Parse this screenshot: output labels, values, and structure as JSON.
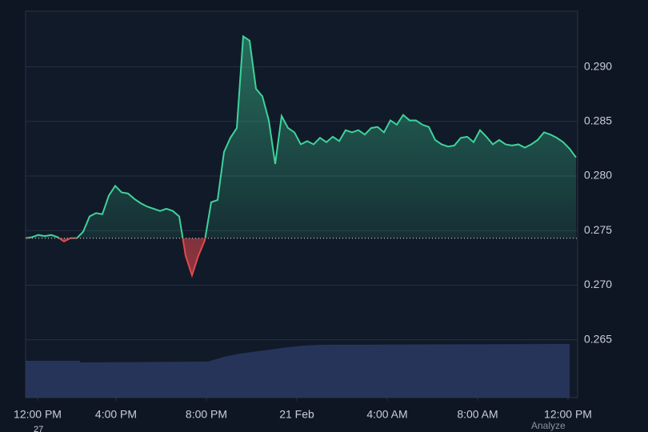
{
  "chart_data": {
    "type": "baseline-area",
    "series": [
      {
        "name": "price",
        "color": "#3ed39b",
        "negative_color": "#e5484d",
        "values": [
          0.2743,
          0.2744,
          0.2746,
          0.2745,
          0.2746,
          0.2744,
          0.274,
          0.2743,
          0.2743,
          0.2749,
          0.2763,
          0.2766,
          0.2765,
          0.2782,
          0.2791,
          0.2785,
          0.2784,
          0.2779,
          0.2775,
          0.2772,
          0.277,
          0.2768,
          0.277,
          0.2768,
          0.2763,
          0.2727,
          0.2709,
          0.2727,
          0.2741,
          0.2776,
          0.2778,
          0.2822,
          0.2835,
          0.2844,
          0.2928,
          0.2924,
          0.288,
          0.2873,
          0.2851,
          0.2811,
          0.2855,
          0.2844,
          0.284,
          0.2829,
          0.2832,
          0.2829,
          0.2835,
          0.2831,
          0.2836,
          0.2832,
          0.2842,
          0.284,
          0.2842,
          0.2838,
          0.2844,
          0.2845,
          0.284,
          0.2851,
          0.2847,
          0.2856,
          0.2851,
          0.2851,
          0.2847,
          0.2845,
          0.2833,
          0.2829,
          0.2827,
          0.2828,
          0.2835,
          0.2836,
          0.2831,
          0.2842,
          0.2836,
          0.2829,
          0.2833,
          0.2829,
          0.2828,
          0.2829,
          0.2826,
          0.2829,
          0.2833,
          0.284,
          0.2838,
          0.2835,
          0.2831,
          0.2825,
          0.2817
        ]
      }
    ],
    "baseline": 0.2743,
    "xlim": [
      0,
      86
    ],
    "xticks": [
      {
        "value": 1.875,
        "label": "12:00 PM"
      },
      {
        "value": 14.125,
        "label": "4:00 PM"
      },
      {
        "value": 28.25,
        "label": "8:00 PM"
      },
      {
        "value": 42.375,
        "label": "21 Feb"
      },
      {
        "value": 56.5,
        "label": "4:00 AM"
      },
      {
        "value": 70.625,
        "label": "8:00 AM"
      },
      {
        "value": 84.75,
        "label": "12:00 PM"
      }
    ],
    "ylim": [
      0.2597,
      0.2951
    ],
    "yticks": [
      {
        "value": 0.265,
        "label": "0.265"
      },
      {
        "value": 0.27,
        "label": "0.270"
      },
      {
        "value": 0.275,
        "label": "0.275"
      },
      {
        "value": 0.28,
        "label": "0.280"
      },
      {
        "value": 0.285,
        "label": "0.285"
      },
      {
        "value": 0.29,
        "label": "0.290"
      }
    ],
    "grid": true
  },
  "footer": {
    "left": "27",
    "right": "Analyze"
  }
}
